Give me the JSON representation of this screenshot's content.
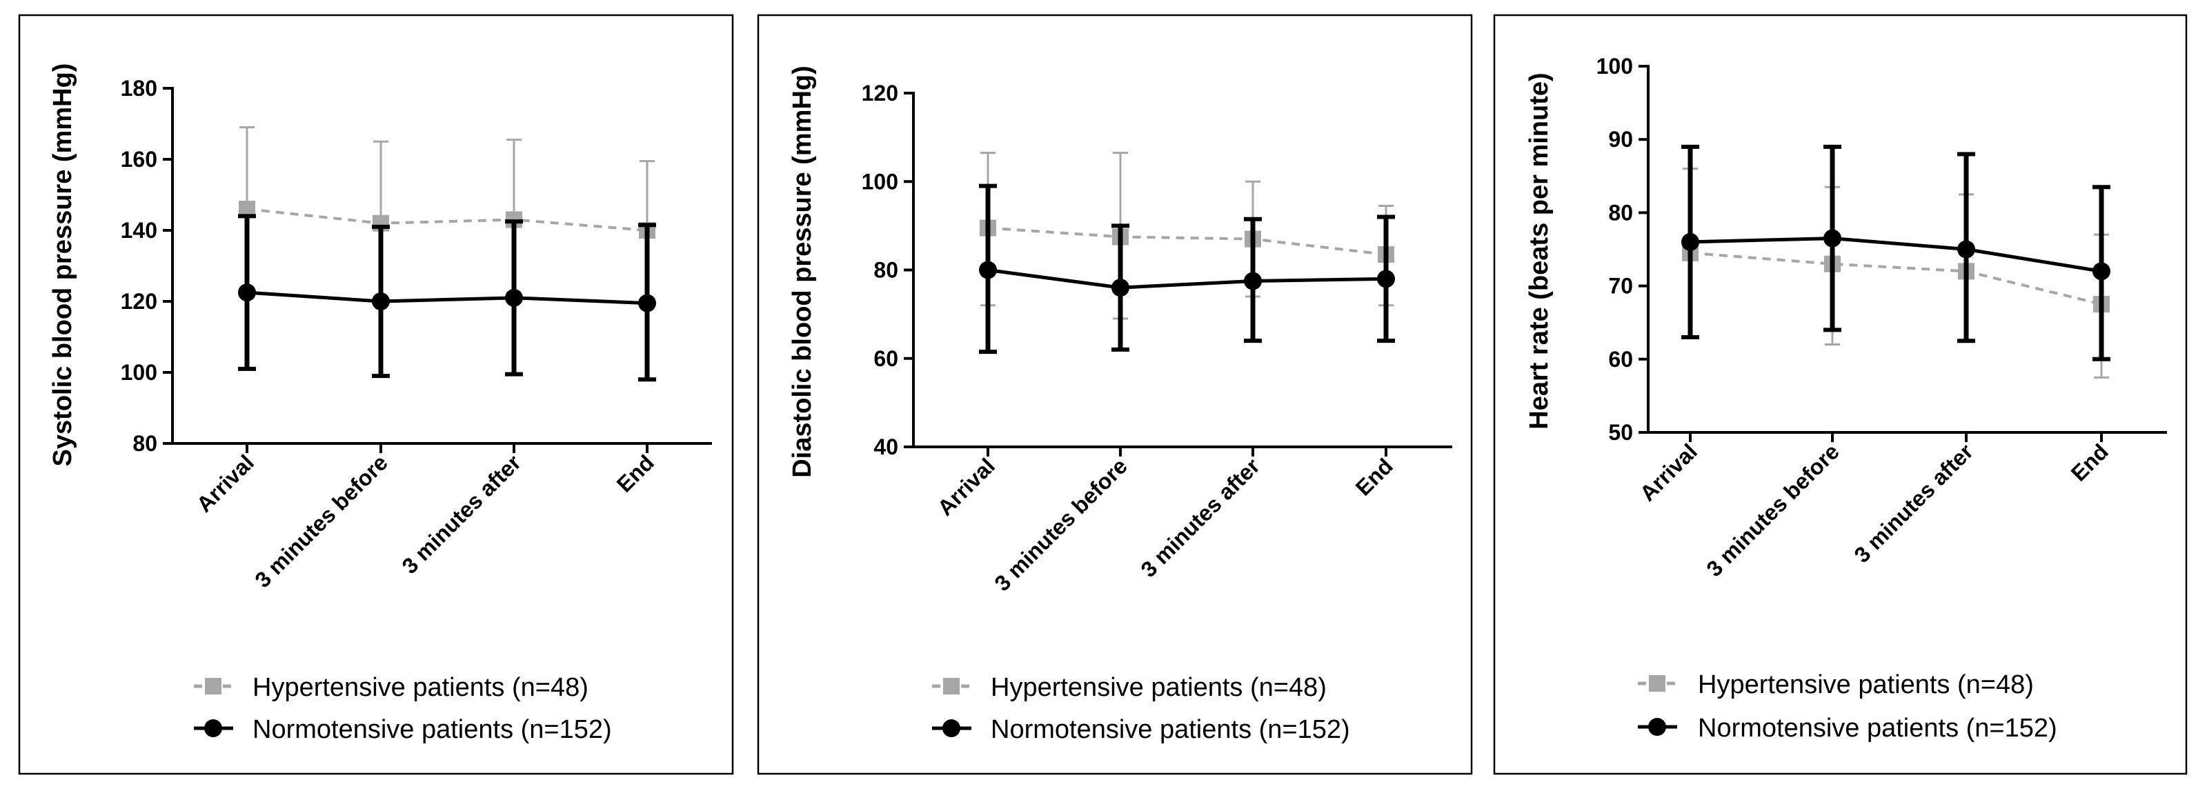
{
  "chart_data": [
    {
      "type": "line",
      "ylabel": "Systolic blood pressure (mmHg)",
      "ylim": [
        80,
        180
      ],
      "yticks": [
        80,
        100,
        120,
        140,
        160,
        180
      ],
      "categories": [
        "Arrival",
        "3 minutes before",
        "3 minutes after",
        "End"
      ],
      "series": [
        {
          "name": "Hypertensive patients (n=48)",
          "color": "#a6a6a6",
          "dashed": true,
          "marker": "square",
          "values": [
            146,
            142,
            143,
            140
          ],
          "err_hi": [
            169,
            165,
            165.5,
            159.5
          ],
          "err_lo": [
            null,
            null,
            null,
            null
          ]
        },
        {
          "name": "Normotensive patients (n=152)",
          "color": "#000000",
          "dashed": false,
          "marker": "circle",
          "values": [
            122.5,
            120,
            121,
            119.5
          ],
          "err_hi": [
            144,
            141,
            142.5,
            141.5
          ],
          "err_lo": [
            101,
            99,
            99.5,
            98
          ]
        }
      ]
    },
    {
      "type": "line",
      "ylabel": "Diastolic blood pressure (mmHg)",
      "ylim": [
        40,
        120
      ],
      "yticks": [
        40,
        60,
        80,
        100,
        120
      ],
      "categories": [
        "Arrival",
        "3 minutes before",
        "3 minutes after",
        "End"
      ],
      "series": [
        {
          "name": "Hypertensive patients (n=48)",
          "color": "#a6a6a6",
          "dashed": true,
          "marker": "square",
          "values": [
            89.5,
            87.5,
            87,
            83.5
          ],
          "err_hi": [
            106.5,
            106.5,
            100,
            94.5
          ],
          "err_lo": [
            72,
            69,
            74,
            72
          ]
        },
        {
          "name": "Normotensive patients (n=152)",
          "color": "#000000",
          "dashed": false,
          "marker": "circle",
          "values": [
            80,
            76,
            77.5,
            78
          ],
          "err_hi": [
            99,
            90,
            91.5,
            92
          ],
          "err_lo": [
            61.5,
            62,
            64,
            64
          ]
        }
      ]
    },
    {
      "type": "line",
      "ylabel": "Heart rate (beats per minute)",
      "ylim": [
        50,
        100
      ],
      "yticks": [
        50,
        60,
        70,
        80,
        90,
        100
      ],
      "categories": [
        "Arrival",
        "3 minutes before",
        "3 minutes after",
        "End"
      ],
      "series": [
        {
          "name": "Hypertensive patients (n=48)",
          "color": "#a6a6a6",
          "dashed": true,
          "marker": "square",
          "values": [
            74.5,
            73,
            72,
            67.5
          ],
          "err_hi": [
            86,
            83.5,
            82.5,
            77
          ],
          "err_lo": [
            63,
            62,
            62.5,
            57.5
          ]
        },
        {
          "name": "Normotensive patients (n=152)",
          "color": "#000000",
          "dashed": false,
          "marker": "circle",
          "values": [
            76,
            76.5,
            75,
            72
          ],
          "err_hi": [
            89,
            89,
            88,
            83.5
          ],
          "err_lo": [
            63,
            64,
            62.5,
            60
          ]
        }
      ]
    }
  ]
}
